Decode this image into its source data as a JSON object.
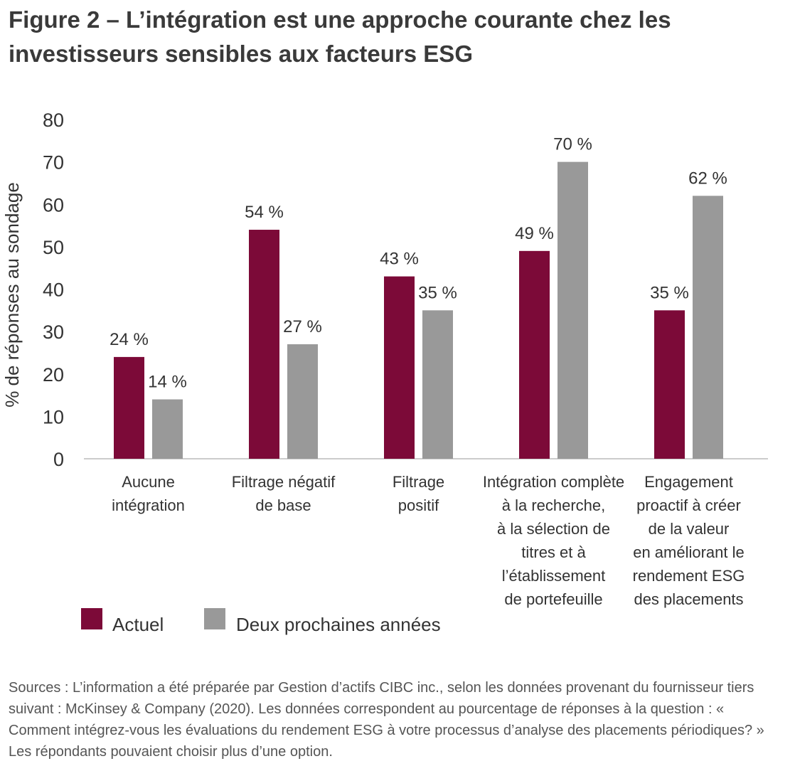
{
  "title": "Figure 2 – L’intégration est une approche courante chez les investisseurs sensibles aux facteurs ESG",
  "sources": "Sources : L’information a été préparée par Gestion d’actifs CIBC inc., selon les données provenant du fournisseur tiers suivant : McKinsey & Company (2020). Les données correspondent au pourcentage de réponses à la question : « Comment intégrez-vous les évaluations du rendement ESG à votre processus d’analyse des placements périodiques? » Les répondants pouvaient choisir plus d’une option.",
  "chart_data": {
    "type": "bar",
    "title": "Figure 2 – L’intégration est une approche courante chez les investisseurs sensibles aux facteurs ESG",
    "xlabel": "",
    "ylabel": "% de réponses au sondage",
    "ylim": [
      0,
      80
    ],
    "yticks": [
      "0",
      "10",
      "20",
      "30",
      "40",
      "50",
      "60",
      "70",
      "80"
    ],
    "grid": false,
    "legend_position": "bottom-left",
    "categories": [
      [
        "Aucune",
        "intégration"
      ],
      [
        "Filtrage négatif",
        "de base"
      ],
      [
        "Filtrage",
        "positif"
      ],
      [
        "Intégration complète",
        "à la recherche,",
        "à la sélection de",
        "titres et à",
        "l’établissement",
        "de portefeuille"
      ],
      [
        "Engagement",
        "proactif à créer",
        "de la valeur",
        "en améliorant le",
        "rendement ESG",
        "des placements"
      ]
    ],
    "series": [
      {
        "name": "Actuel",
        "color": "#7c0a38",
        "values": [
          24,
          54,
          43,
          49,
          35
        ],
        "labels": [
          "24 %",
          "54 %",
          "43 %",
          "49 %",
          "35 %"
        ]
      },
      {
        "name": "Deux prochaines années",
        "color": "#999999",
        "values": [
          14,
          27,
          35,
          70,
          62
        ],
        "labels": [
          "14 %",
          "27 %",
          "35 %",
          "70 %",
          "62 %"
        ]
      }
    ]
  }
}
